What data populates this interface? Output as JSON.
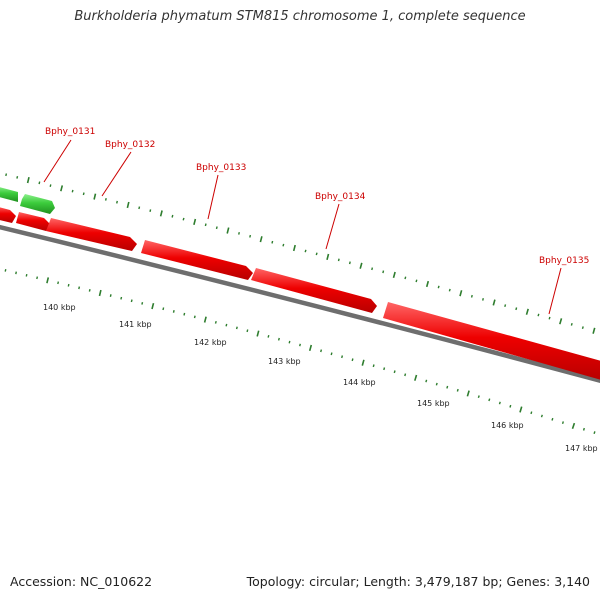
{
  "title": "Burkholderia phymatum STM815 chromosome 1, complete sequence",
  "footer": {
    "accession": "Accession: NC_010622",
    "summary": "Topology: circular; Length: 3,479,187 bp; Genes: 3,140"
  },
  "colors": {
    "forward_gene": "#e60000",
    "reverse_gene": "#33cc33",
    "backbone": "#808080",
    "ticks": "#2e7d2e",
    "gene_label": "#cc0000"
  },
  "gene_labels": [
    "Bphy_0131",
    "Bphy_0132",
    "Bphy_0133",
    "Bphy_0134",
    "Bphy_0135"
  ],
  "kbp_labels": [
    "140 kbp",
    "141 kbp",
    "142 kbp",
    "143 kbp",
    "144 kbp",
    "145 kbp",
    "146 kbp",
    "147 kbp"
  ]
}
